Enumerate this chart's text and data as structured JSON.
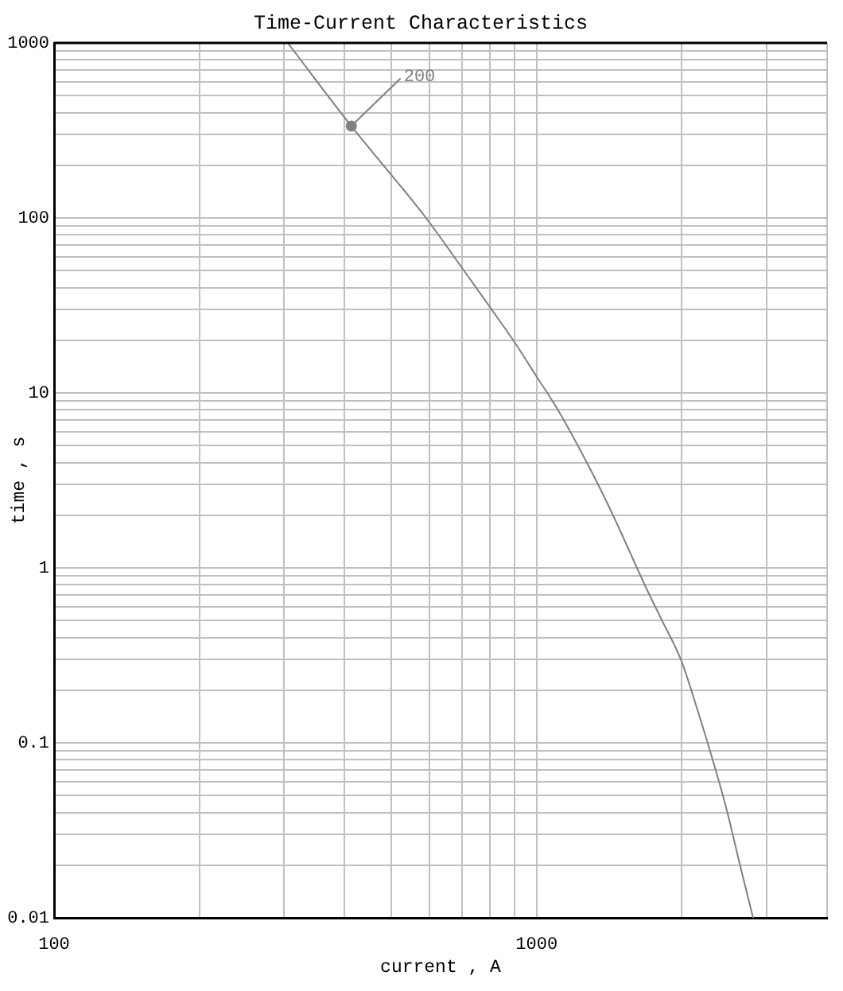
{
  "chart_data": {
    "type": "line",
    "title": "Time-Current Characteristics",
    "xlabel": "current , A",
    "ylabel": "time , s",
    "log": "xy",
    "grid": true,
    "xlim": [
      100,
      4000
    ],
    "ylim": [
      0.01,
      1000
    ],
    "xticks": [
      100,
      {
        "value": 200,
        "label": null
      },
      {
        "value": 300,
        "label": null
      },
      {
        "value": 400,
        "label": null
      },
      {
        "value": 500,
        "label": null
      },
      {
        "value": 600,
        "label": null
      },
      {
        "value": 700,
        "label": null
      },
      {
        "value": 800,
        "label": null
      },
      {
        "value": 900,
        "label": null
      },
      1000,
      {
        "value": 2000,
        "label": null
      },
      {
        "value": 3000,
        "label": null
      },
      {
        "value": 4000,
        "label": null
      }
    ],
    "yticks": [
      0.01,
      {
        "value": 0.02,
        "label": null
      },
      {
        "value": 0.03,
        "label": null
      },
      {
        "value": 0.04,
        "label": null
      },
      {
        "value": 0.05,
        "label": null
      },
      {
        "value": 0.06,
        "label": null
      },
      {
        "value": 0.07,
        "label": null
      },
      {
        "value": 0.08,
        "label": null
      },
      {
        "value": 0.09,
        "label": null
      },
      0.1,
      {
        "value": 0.2,
        "label": null
      },
      {
        "value": 0.3,
        "label": null
      },
      {
        "value": 0.4,
        "label": null
      },
      {
        "value": 0.5,
        "label": null
      },
      {
        "value": 0.6,
        "label": null
      },
      {
        "value": 0.7,
        "label": null
      },
      {
        "value": 0.8,
        "label": null
      },
      {
        "value": 0.9,
        "label": null
      },
      1,
      {
        "value": 2,
        "label": null
      },
      {
        "value": 3,
        "label": null
      },
      {
        "value": 4,
        "label": null
      },
      {
        "value": 5,
        "label": null
      },
      {
        "value": 6,
        "label": null
      },
      {
        "value": 7,
        "label": null
      },
      {
        "value": 8,
        "label": null
      },
      {
        "value": 9,
        "label": null
      },
      10,
      {
        "value": 20,
        "label": null
      },
      {
        "value": 30,
        "label": null
      },
      {
        "value": 40,
        "label": null
      },
      {
        "value": 50,
        "label": null
      },
      {
        "value": 60,
        "label": null
      },
      {
        "value": 70,
        "label": null
      },
      {
        "value": 80,
        "label": null
      },
      {
        "value": 90,
        "label": null
      },
      100,
      {
        "value": 200,
        "label": null
      },
      {
        "value": 300,
        "label": null
      },
      {
        "value": 400,
        "label": null
      },
      {
        "value": 500,
        "label": null
      },
      {
        "value": 600,
        "label": null
      },
      {
        "value": 700,
        "label": null
      },
      {
        "value": 800,
        "label": null
      },
      {
        "value": 900,
        "label": null
      },
      1000
    ],
    "x": [
      305,
      413,
      590,
      700,
      800,
      900,
      1000,
      1110,
      1310,
      1440,
      1690,
      1820,
      2000,
      2140,
      2330,
      2480,
      2640,
      2810
    ],
    "series": [
      {
        "color": "#808080",
        "values": [
          1000,
          335,
          100,
          52,
          31,
          19.5,
          12.4,
          7.9,
          3.4,
          2.0,
          0.76,
          0.5,
          0.29,
          0.164,
          0.076,
          0.041,
          0.02,
          0.01
        ]
      }
    ],
    "annotations": [
      {
        "text": "200",
        "x": 413,
        "y": 335
      }
    ]
  }
}
